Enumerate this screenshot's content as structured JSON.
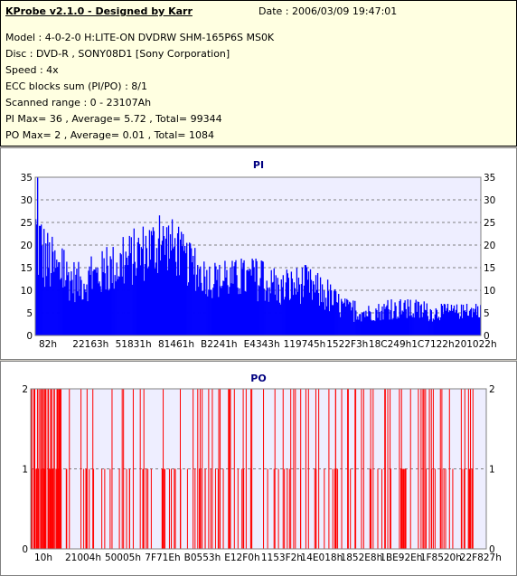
{
  "header": {
    "title": "KProbe v2.1.0 - Designed by Karr",
    "date": "Date : 2006/03/09 19:47:01",
    "model": "Model : 4-0-2-0 H:LITE-ON DVDRW SHM-165P6S MS0K",
    "disc": "Disc : DVD-R , SONY08D1 [Sony Corporation]",
    "speed": "Speed : 4x",
    "ecc": "ECC blocks sum (PI/PO) : 8/1",
    "range": "Scanned range : 0 - 23107Ah",
    "pi_stats": "PI Max= 36 , Average= 5.72 , Total= 99344",
    "po_stats": "PO Max= 2 , Average= 0.01 , Total= 1084"
  },
  "colors": {
    "pi": "#0000ff",
    "po": "#ff0000",
    "plot_bg": "#eeeeff",
    "title": "#000080"
  },
  "chart_data": [
    {
      "type": "area",
      "title": "PI",
      "ylim": [
        0,
        35
      ],
      "y_ticks": [
        "0",
        "5",
        "10",
        "15",
        "20",
        "25",
        "30",
        "35"
      ],
      "x_ticks": [
        "82h",
        "22163h",
        "51831h",
        "81461h",
        "B2241h",
        "E4343h",
        "119745h",
        "1522F3h",
        "18C249h",
        "1C7122h",
        "201022h"
      ],
      "grid": true,
      "profile": {
        "x": [
          0,
          2,
          5,
          10,
          15,
          20,
          25,
          30,
          35,
          40,
          45,
          50,
          55,
          60,
          65,
          70,
          75,
          80,
          85,
          90,
          95,
          100
        ],
        "avg": [
          10,
          9,
          8,
          7,
          8.5,
          10,
          12,
          14,
          10,
          8,
          8,
          7.5,
          6,
          7,
          5,
          3,
          3,
          3.5,
          3,
          3,
          3.5,
          4
        ],
        "peak": [
          34,
          25,
          20,
          16,
          19,
          22,
          26,
          27,
          20,
          16,
          17,
          17,
          14,
          16,
          13,
          8,
          7,
          8,
          8,
          7,
          7,
          7
        ]
      },
      "max": 36
    },
    {
      "type": "bar",
      "title": "PO",
      "ylim": [
        0,
        2
      ],
      "y_ticks": [
        "0",
        "1",
        "2"
      ],
      "x_ticks": [
        "10h",
        "21004h",
        "50005h",
        "7F71Eh",
        "B0553h",
        "E12F0h",
        "1153F2h",
        "14E018h",
        "1852E8h",
        "1BE92Eh",
        "1F8520h",
        "22F827h"
      ],
      "grid": true,
      "max": 2
    }
  ]
}
